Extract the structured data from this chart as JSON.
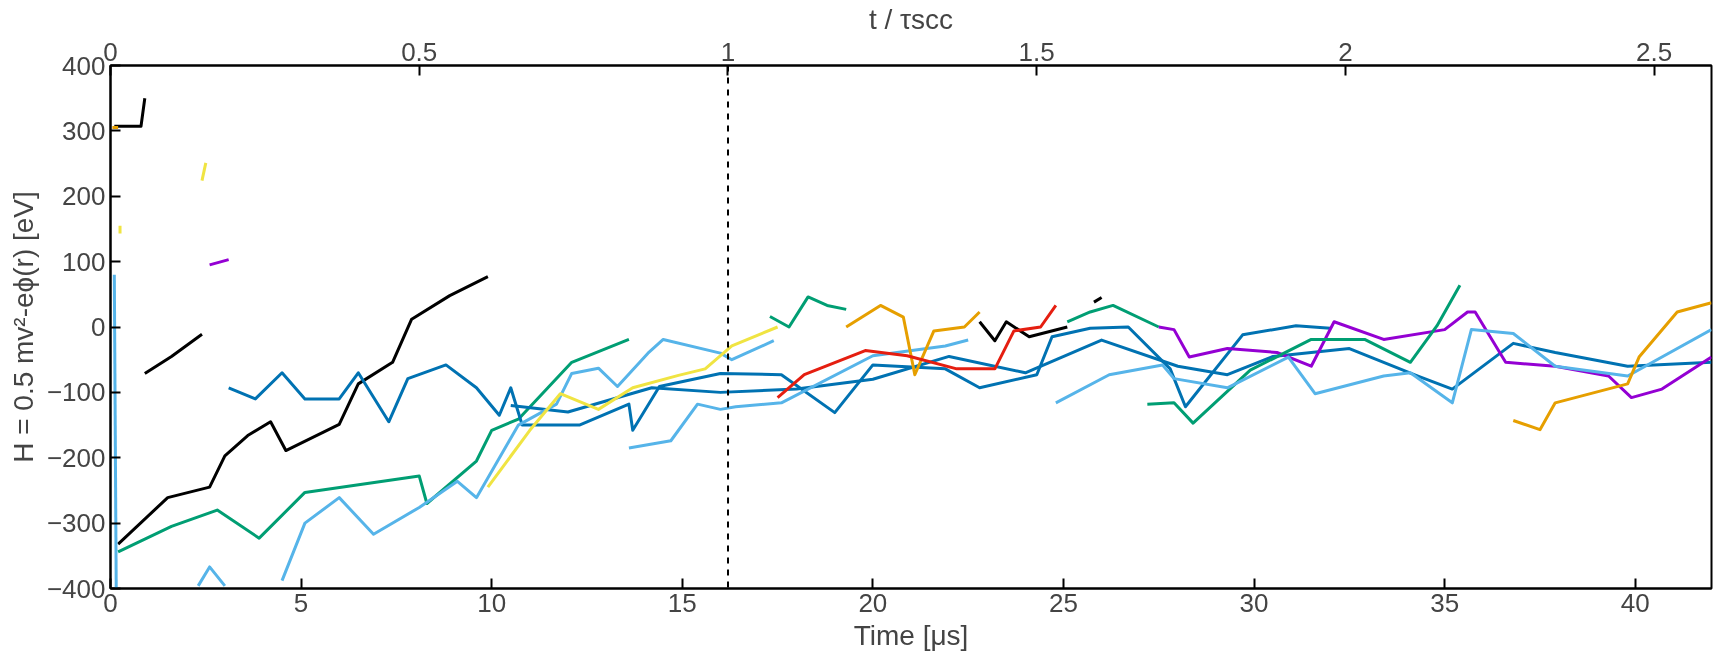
{
  "chart_data": {
    "type": "line",
    "xlabel": "Time [μs]",
    "ylabel": "H = 0.5 mv²-eϕ(r) [eV]",
    "x2label": "t / τscc",
    "xlim": [
      0,
      42
    ],
    "xticks": [
      0,
      5,
      10,
      15,
      20,
      25,
      30,
      35,
      40
    ],
    "x2lim": [
      0,
      2.593
    ],
    "x2ticks": [
      0,
      0.5,
      1,
      1.5,
      2,
      2.5
    ],
    "ylim": [
      -400,
      400
    ],
    "yticks": [
      -400,
      -300,
      -200,
      -100,
      0,
      100,
      200,
      300,
      400
    ],
    "grid": false,
    "line_style": "solid",
    "marker": "none",
    "ref_lines": [
      {
        "axis": "x",
        "value": 16.2,
        "color": "#000000",
        "line_style": "dashed"
      }
    ],
    "series": [
      {
        "color": "#000000",
        "x": [
          0.2,
          1.5,
          2.6,
          3,
          3.6,
          4.2,
          4.6,
          6,
          6.5,
          7.4,
          7.9,
          8.9,
          9.9
        ],
        "values": [
          -332,
          -261,
          -245,
          -197,
          -166,
          -145,
          -189,
          -149,
          -87,
          -54,
          12,
          48,
          77
        ]
      },
      {
        "color": "#000000",
        "x": [
          0.9,
          1.6,
          2.4
        ],
        "values": [
          -71,
          -45,
          -11
        ]
      },
      {
        "color": "#000000",
        "x": [
          0.1,
          0.8,
          0.9
        ],
        "values": [
          307,
          307,
          350
        ]
      },
      {
        "color": "#e69f00",
        "x": [
          0.05,
          0.2
        ],
        "values": [
          305,
          305
        ]
      },
      {
        "color": "#f0e442",
        "x": [
          2.4,
          2.5
        ],
        "values": [
          224,
          251
        ]
      },
      {
        "color": "#f0e442",
        "x": [
          0.25,
          0.25
        ],
        "values": [
          143,
          155
        ]
      },
      {
        "color": "#9400d3",
        "x": [
          2.6,
          3.1
        ],
        "values": [
          95,
          103
        ]
      },
      {
        "color": "#56b4e9",
        "x": [
          0.1,
          0.15
        ],
        "values": [
          80,
          -400
        ]
      },
      {
        "color": "#56b4e9",
        "x": [
          2.3,
          2.6,
          3
        ],
        "values": [
          -396,
          -367,
          -396
        ]
      },
      {
        "color": "#009e73",
        "x": [
          0.2,
          1.6,
          2.8,
          3.9,
          5.1,
          8.1,
          8.3,
          9.6,
          10,
          10.7,
          12.1,
          13.6
        ],
        "values": [
          -344,
          -305,
          -280,
          -323,
          -253,
          -228,
          -270,
          -205,
          -158,
          -141,
          -54,
          -19
        ]
      },
      {
        "color": "#0072b2",
        "x": [
          3.1,
          3.8,
          4.5,
          5.1,
          6,
          6.5,
          7.3,
          7.8,
          8.8,
          9.6,
          10.2,
          10.5,
          10.8,
          12.3,
          13.6,
          13.7,
          14.4,
          16,
          17.6,
          19,
          20,
          21.9,
          22.8,
          24.3,
          24.7,
          25.7,
          26.7,
          27.8,
          28.2,
          29.7,
          31.1,
          32
        ],
        "values": [
          -93,
          -110,
          -70,
          -110,
          -110,
          -70,
          -145,
          -79,
          -58,
          -93,
          -135,
          -93,
          -150,
          -150,
          -118,
          -158,
          -91,
          -71,
          -73,
          -131,
          -58,
          -64,
          -93,
          -73,
          -15,
          -2,
          0,
          -64,
          -122,
          -12,
          2,
          -2
        ]
      },
      {
        "color": "#0072b2",
        "x": [
          10.5,
          12,
          14.2,
          16,
          18,
          20,
          22,
          24,
          26,
          28,
          29.3,
          30.5,
          32.5,
          34.3,
          35.2,
          36.8,
          37.9,
          39.8,
          42
        ],
        "values": [
          -120,
          -130,
          -93,
          -100,
          -95,
          -80,
          -45,
          -70,
          -20,
          -60,
          -73,
          -45,
          -33,
          -75,
          -95,
          -25,
          -39,
          -60,
          -54
        ]
      },
      {
        "color": "#56b4e9",
        "x": [
          4.5,
          5.1,
          6,
          6.9,
          8.1,
          9.1,
          9.6,
          10.7,
          11.7,
          12.1,
          12.8,
          13.3,
          14.1,
          14.5,
          16,
          16.3,
          17.4
        ],
        "values": [
          -388,
          -300,
          -261,
          -317,
          -276,
          -236,
          -261,
          -150,
          -118,
          -71,
          -63,
          -91,
          -40,
          -19,
          -40,
          -50,
          -21
        ]
      },
      {
        "color": "#56b4e9",
        "x": [
          13.6,
          14.7,
          15.4,
          16,
          16.4,
          17.6,
          20,
          21.9,
          22.5
        ],
        "values": [
          -185,
          -174,
          -118,
          -126,
          -122,
          -116,
          -44,
          -29,
          -20
        ]
      },
      {
        "color": "#f0e442",
        "x": [
          9.9,
          11,
          11.8,
          12.8,
          13.7,
          14.9,
          15.6,
          16.3,
          17.5
        ],
        "values": [
          -245,
          -158,
          -102,
          -126,
          -93,
          -74,
          -64,
          -29,
          0
        ]
      },
      {
        "color": "#009e73",
        "x": [
          17.3,
          17.8,
          18.3,
          18.8,
          19.3
        ],
        "values": [
          16,
          0,
          46,
          33,
          27
        ]
      },
      {
        "color": "#e69f00",
        "x": [
          19.3,
          20.2,
          20.8,
          21.1,
          21.6,
          22.4,
          22.8
        ],
        "values": [
          0,
          33,
          15,
          -73,
          -6,
          0,
          23
        ]
      },
      {
        "color": "#000000",
        "x": [
          22.8,
          23.2,
          23.5,
          24.1,
          25.1
        ],
        "values": [
          8,
          -21,
          8,
          -15,
          0
        ]
      },
      {
        "color": "#000000",
        "x": [
          25.8,
          26
        ],
        "values": [
          38,
          45
        ]
      },
      {
        "color": "#e51e10",
        "x": [
          17.5,
          18.2,
          19.8,
          20.9,
          22.2,
          23.2,
          23.7,
          24.4,
          24.8
        ],
        "values": [
          -108,
          -73,
          -36,
          -44,
          -64,
          -64,
          -6,
          0,
          33
        ]
      },
      {
        "color": "#009e73",
        "x": [
          25.1,
          25.7,
          26.3,
          27.5
        ],
        "values": [
          8,
          23,
          33,
          0
        ]
      },
      {
        "color": "#9400d3",
        "x": [
          27.5,
          27.9,
          28.3,
          29.3,
          30.6,
          31.5,
          32.1,
          33.4,
          35,
          35.6,
          35.8,
          36.6,
          37.9,
          39.3,
          39.9,
          40.7,
          42
        ],
        "values": [
          0,
          -4,
          -46,
          -33,
          -39,
          -60,
          8,
          -19,
          -4,
          23,
          23,
          -54,
          -60,
          -75,
          -108,
          -95,
          -46
        ]
      },
      {
        "color": "#009e73",
        "x": [
          27.2,
          27.9,
          28.4,
          29.9,
          31.5,
          32.9,
          34.1,
          34.8,
          35.4
        ],
        "values": [
          -118,
          -116,
          -147,
          -66,
          -19,
          -19,
          -54,
          2,
          64
        ]
      },
      {
        "color": "#56b4e9",
        "x": [
          24.8,
          26.2,
          27.6,
          27.9,
          29.3,
          30.9,
          31.6,
          33.4,
          34.1,
          35.2,
          35.7,
          36.8,
          37.9,
          39.8,
          42
        ],
        "values": [
          -116,
          -73,
          -58,
          -79,
          -93,
          -46,
          -102,
          -75,
          -70,
          -116,
          -4,
          -10,
          -60,
          -75,
          -4
        ]
      },
      {
        "color": "#e69f00",
        "x": [
          36.8,
          37.5,
          37.9,
          39.8,
          40.1,
          41.1,
          42
        ],
        "values": [
          -143,
          -157,
          -116,
          -87,
          -46,
          23,
          37
        ]
      }
    ]
  }
}
